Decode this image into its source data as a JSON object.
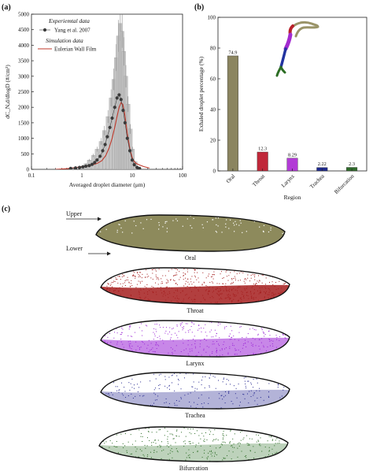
{
  "panels": {
    "a": "(a)",
    "b": "(b)",
    "c": "(c)"
  },
  "chart_data": [
    {
      "type": "scatter",
      "panel": "(a)",
      "xlabel": "Averaged droplet diameter (μm)",
      "ylabel": "dC_N,d/dlogD (#/cm³)",
      "xscale": "log",
      "xlim": [
        0.1,
        100
      ],
      "ylim": [
        0,
        5000
      ],
      "x_ticks": [
        "0.1",
        "1",
        "10",
        "100"
      ],
      "y_ticks": [
        "0",
        "500",
        "1000",
        "1500",
        "2000",
        "2500",
        "3000",
        "3500",
        "4000",
        "4500",
        "5000"
      ],
      "legend": {
        "placement": "top-left",
        "experimental_heading": "Experiemtal data",
        "experimental_label": "Yang et al. 2007",
        "simulation_heading": "Simulation data",
        "simulation_label": "Eulerian Wall Film"
      },
      "colors": {
        "experimental": "#3a3a3a",
        "simulation": "#c0392b",
        "bars": "#bdbdbd"
      },
      "experimental": {
        "x": [
          0.6,
          0.75,
          0.9,
          1.05,
          1.2,
          1.4,
          1.6,
          1.8,
          2.0,
          2.3,
          2.6,
          2.9,
          3.2,
          3.6,
          4.0,
          4.5,
          5.0,
          5.5,
          6.0,
          6.6,
          7.2,
          8.0,
          9.0,
          10.0,
          11.0,
          12.5,
          14.0
        ],
        "y": [
          30,
          45,
          60,
          80,
          100,
          120,
          160,
          220,
          300,
          420,
          600,
          800,
          1050,
          1350,
          1650,
          2000,
          2300,
          2400,
          2250,
          1900,
          1500,
          1000,
          600,
          300,
          150,
          60,
          30
        ]
      },
      "simulation": {
        "x": [
          0.3,
          0.5,
          0.8,
          1.0,
          1.3,
          1.6,
          2.0,
          2.5,
          3.0,
          3.5,
          4.0,
          4.5,
          5.0,
          5.5,
          6.0,
          6.5,
          7.0,
          7.5,
          8.0,
          9.0,
          10.0,
          11.0,
          12.0,
          14.0,
          17.0,
          22.0
        ],
        "y": [
          0,
          20,
          60,
          90,
          110,
          140,
          190,
          280,
          450,
          700,
          1000,
          1350,
          1700,
          2000,
          2150,
          2100,
          1850,
          1500,
          1150,
          650,
          380,
          250,
          190,
          140,
          90,
          40
        ]
      },
      "bars": {
        "x": [
          1.0,
          1.2,
          1.4,
          1.7,
          2.0,
          2.4,
          2.8,
          3.3,
          3.8,
          4.3,
          4.8,
          5.3,
          5.8,
          6.3,
          6.8,
          7.5,
          8.3,
          9.2,
          10.2,
          11.5
        ],
        "y": [
          100,
          180,
          300,
          450,
          650,
          900,
          1250,
          1700,
          2300,
          2900,
          3600,
          4300,
          4700,
          4450,
          3800,
          3000,
          2100,
          1300,
          650,
          250
        ]
      }
    },
    {
      "type": "bar",
      "panel": "(b)",
      "xlabel": "Region",
      "ylabel": "Exhaled droplet percentage (%)",
      "ylim": [
        0,
        100
      ],
      "y_ticks": [
        "0",
        "20",
        "40",
        "60",
        "80",
        "100"
      ],
      "categories": [
        "Oral",
        "Throat",
        "Larynx",
        "Trachea",
        "Bifurcation"
      ],
      "values": [
        74.9,
        12.3,
        8.29,
        2.22,
        2.3
      ],
      "value_labels": [
        "74.9",
        "12.3",
        "8.29",
        "2.22",
        "2.3"
      ],
      "colors": [
        "#8b8560",
        "#c0283a",
        "#b23bd6",
        "#1f2a8c",
        "#2f6b2a"
      ]
    }
  ],
  "panel_c": {
    "upper_label": "Upper",
    "lower_label": "Lower",
    "sections": [
      {
        "label": "Oral",
        "color": "#8d8a5c"
      },
      {
        "label": "Throat",
        "color": "#a41d1d"
      },
      {
        "label": "Larynx",
        "color": "#9a24d6"
      },
      {
        "label": "Trachea",
        "color": "#24268f"
      },
      {
        "label": "Bifurcation",
        "color": "#26691f"
      }
    ]
  }
}
